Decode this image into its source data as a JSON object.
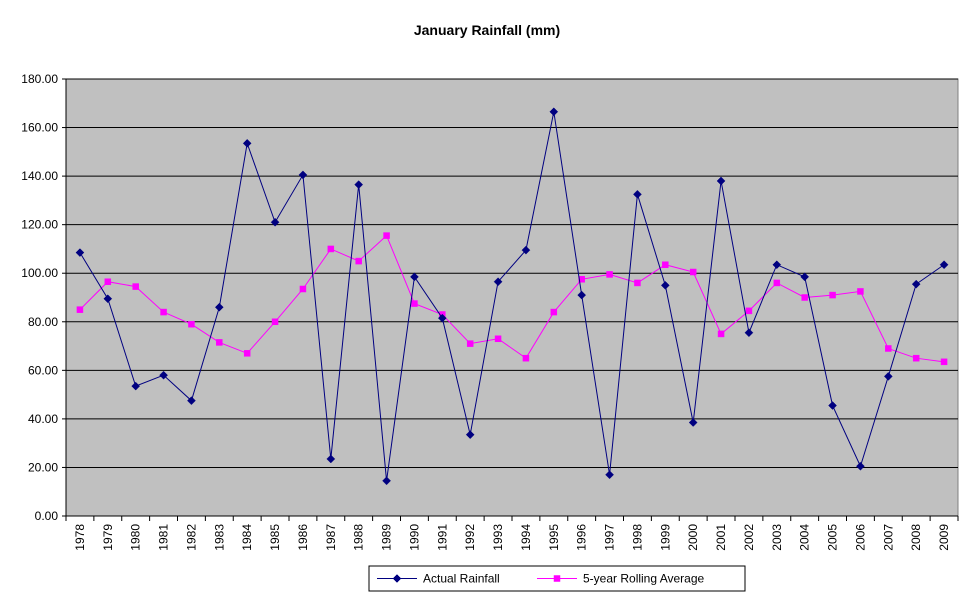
{
  "chart_data": {
    "type": "line",
    "title": "January Rainfall (mm)",
    "xlabel": "",
    "ylabel": "",
    "ylim": [
      0,
      180
    ],
    "yticks": [
      "0.00",
      "20.00",
      "40.00",
      "60.00",
      "80.00",
      "100.00",
      "120.00",
      "140.00",
      "160.00",
      "180.00"
    ],
    "grid": true,
    "legend_position": "bottom",
    "background": "#c0c0c0",
    "categories": [
      "1978",
      "1979",
      "1980",
      "1981",
      "1982",
      "1983",
      "1984",
      "1985",
      "1986",
      "1987",
      "1988",
      "1989",
      "1990",
      "1991",
      "1992",
      "1993",
      "1994",
      "1995",
      "1996",
      "1997",
      "1998",
      "1999",
      "2000",
      "2001",
      "2002",
      "2003",
      "2004",
      "2005",
      "2006",
      "2007",
      "2008",
      "2009"
    ],
    "series": [
      {
        "name": "Actual Rainfall",
        "color": "#000080",
        "marker": "diamond",
        "values": [
          108.5,
          89.5,
          53.5,
          58.0,
          47.5,
          86.0,
          153.5,
          121.0,
          140.5,
          23.5,
          136.5,
          14.5,
          98.5,
          81.5,
          33.5,
          96.5,
          109.5,
          166.5,
          91.0,
          17.0,
          132.5,
          95.0,
          38.5,
          138.0,
          75.5,
          103.5,
          98.5,
          45.5,
          20.5,
          57.5,
          95.5,
          103.5
        ]
      },
      {
        "name": "5-year Rolling Average",
        "color": "#ff00ff",
        "marker": "square",
        "values": [
          85.0,
          96.5,
          94.5,
          84.0,
          79.0,
          71.5,
          67.0,
          80.0,
          93.5,
          110.0,
          105.0,
          115.5,
          87.5,
          83.0,
          71.0,
          73.0,
          65.0,
          84.0,
          97.5,
          99.5,
          96.0,
          103.5,
          100.5,
          75.0,
          84.5,
          96.0,
          90.0,
          91.0,
          92.5,
          69.0,
          65.0,
          63.5
        ]
      }
    ]
  }
}
